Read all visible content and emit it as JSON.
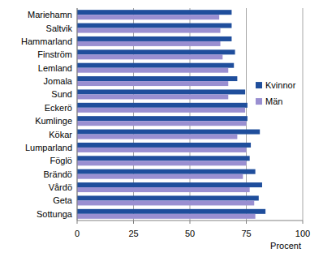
{
  "chart_data": {
    "type": "bar",
    "orientation": "horizontal",
    "x_label": "Procent",
    "categories": [
      "Mariehamn",
      "Saltvik",
      "Hammarland",
      "Finström",
      "Lemland",
      "Jomala",
      "Sund",
      "Eckerö",
      "Kumlinge",
      "Kökar",
      "Lumparland",
      "Föglö",
      "Brändö",
      "Vårdö",
      "Geta",
      "Sottunga"
    ],
    "series": [
      {
        "name": "Kvinnor",
        "color": "#1f4e9c",
        "values": [
          68.5,
          68.5,
          68.5,
          70,
          69.5,
          71,
          74.5,
          75.5,
          75.5,
          81,
          77,
          76.5,
          79,
          82,
          80.5,
          83.5
        ]
      },
      {
        "name": "Män",
        "color": "#9a8fd1",
        "values": [
          63,
          63.5,
          63.5,
          64.5,
          67,
          67,
          67,
          74.5,
          75,
          71,
          75,
          75,
          73.5,
          76.5,
          78.5,
          79
        ]
      }
    ],
    "xlim": [
      0,
      100
    ],
    "xticks": [
      0,
      25,
      50,
      75,
      100
    ],
    "grid": true,
    "legend": "right"
  }
}
